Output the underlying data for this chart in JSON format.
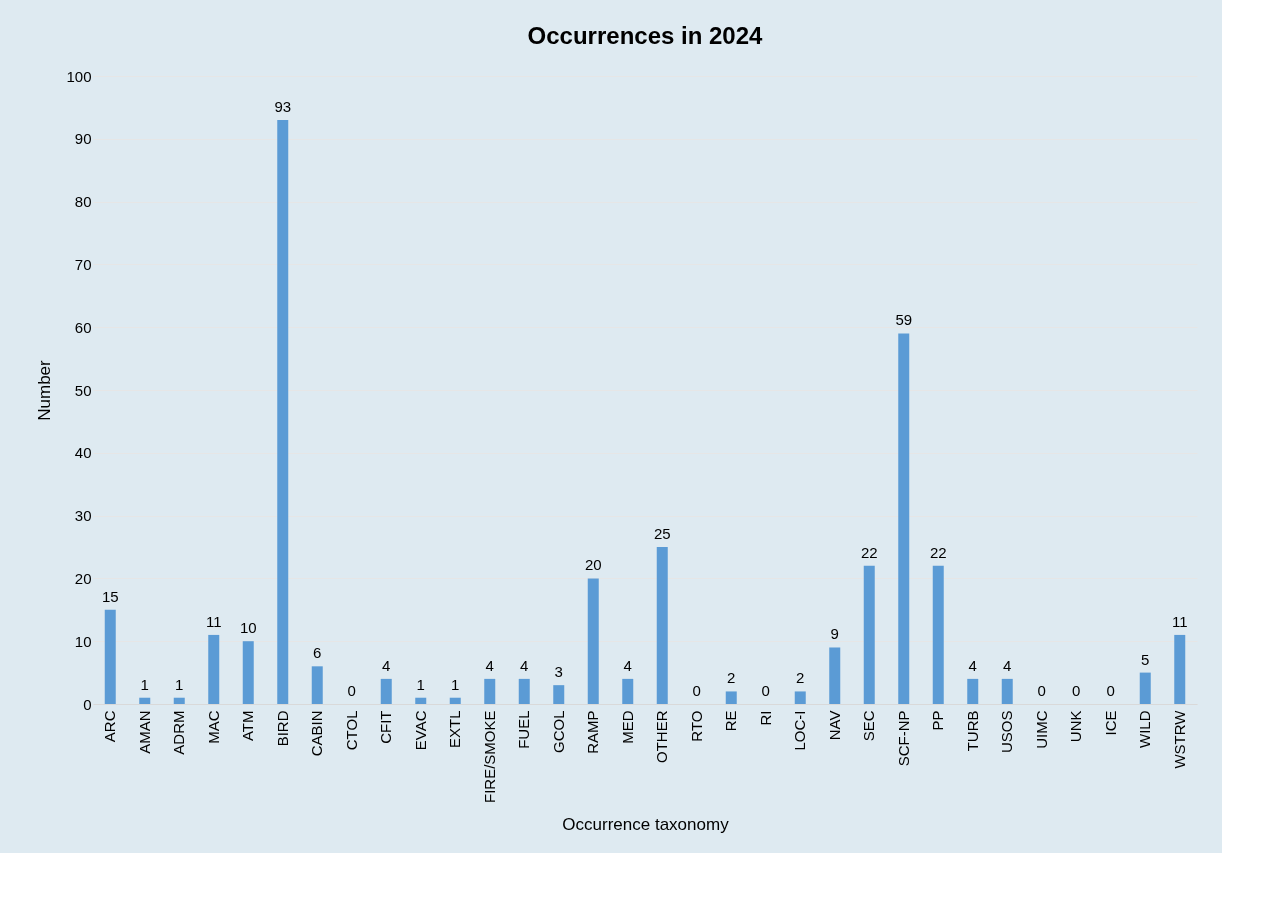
{
  "chart_data": {
    "type": "bar",
    "title": "Occurrences in 2024",
    "xlabel": "Occurrence taxonomy",
    "ylabel": "Number",
    "categories": [
      "ARC",
      "AMAN",
      "ADRM",
      "MAC",
      "ATM",
      "BIRD",
      "CABIN",
      "CTOL",
      "CFIT",
      "EVAC",
      "EXTL",
      "FIRE/SMOKE",
      "FUEL",
      "GCOL",
      "RAMP",
      "MED",
      "OTHER",
      "RTO",
      "RE",
      "RI",
      "LOC-I",
      "NAV",
      "SEC",
      "SCF-NP",
      "PP",
      "TURB",
      "USOS",
      "UIMC",
      "UNK",
      "ICE",
      "WILD",
      "WSTRW"
    ],
    "values": [
      15,
      1,
      1,
      11,
      10,
      93,
      6,
      0,
      4,
      1,
      1,
      4,
      4,
      3,
      20,
      4,
      25,
      0,
      2,
      0,
      2,
      9,
      22,
      59,
      22,
      4,
      4,
      0,
      0,
      0,
      5,
      11
    ],
    "color": "#5b9bd5",
    "ylim": [
      0,
      100
    ],
    "yticks": [
      0,
      10,
      20,
      30,
      40,
      50,
      60,
      70,
      80,
      90,
      100
    ],
    "grid": "y",
    "data_labels": true
  }
}
